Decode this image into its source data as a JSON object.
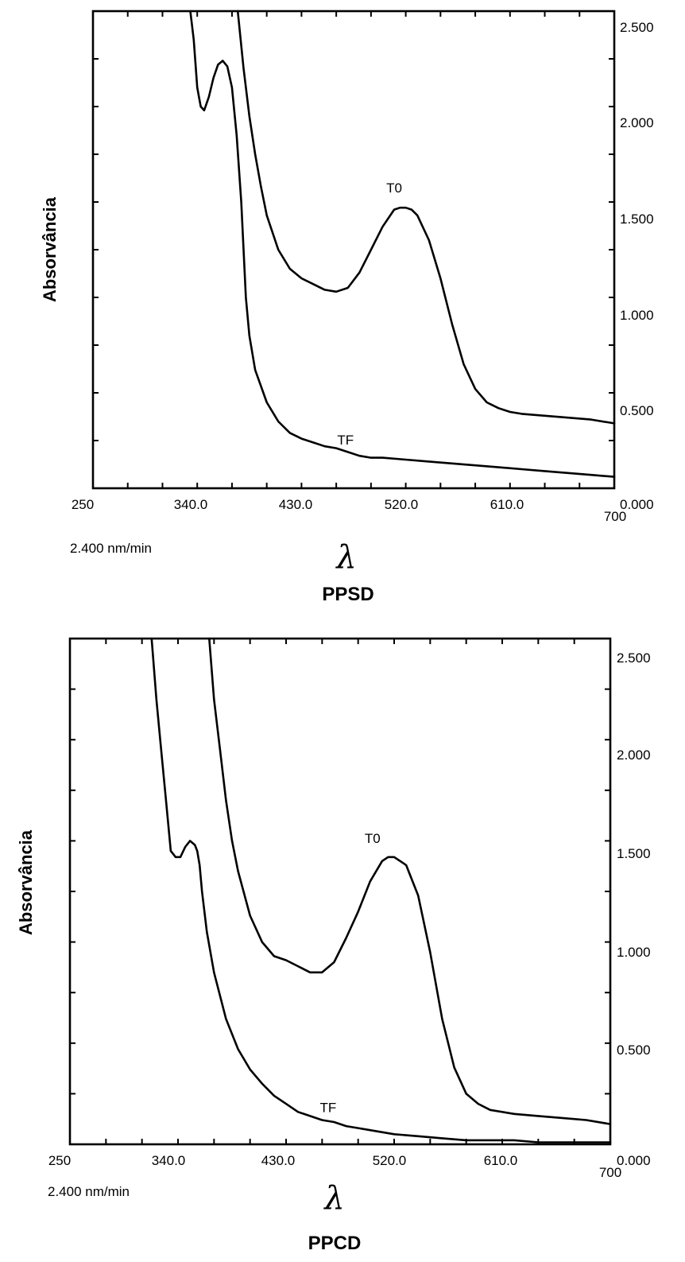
{
  "chart_data": [
    {
      "type": "line",
      "name": "PPSD",
      "xlabel": "λ",
      "ylabel": "Absorvância",
      "rate": "2.400 nm/min",
      "xlim": [
        250,
        700
      ],
      "ylim": [
        0,
        2.5
      ],
      "x_ticks": [
        "250",
        "340.0",
        "430.0",
        "520.0",
        "610.0",
        "700"
      ],
      "y_ticks": [
        "0.000",
        "0.500",
        "1.000",
        "1.500",
        "2.000",
        "2.500"
      ],
      "series": [
        {
          "name": "T0",
          "x": [
            375,
            380,
            385,
            390,
            395,
            400,
            410,
            420,
            430,
            440,
            450,
            460,
            470,
            480,
            490,
            500,
            510,
            515,
            520,
            525,
            530,
            540,
            550,
            560,
            570,
            580,
            590,
            600,
            610,
            620,
            640,
            660,
            680,
            700
          ],
          "y": [
            2.5,
            2.2,
            1.95,
            1.75,
            1.58,
            1.43,
            1.25,
            1.15,
            1.1,
            1.07,
            1.04,
            1.03,
            1.05,
            1.13,
            1.25,
            1.37,
            1.46,
            1.47,
            1.47,
            1.46,
            1.43,
            1.3,
            1.1,
            0.86,
            0.65,
            0.52,
            0.45,
            0.42,
            0.4,
            0.39,
            0.38,
            0.37,
            0.36,
            0.34
          ]
        },
        {
          "name": "TF",
          "x": [
            334,
            337,
            340,
            343,
            346,
            350,
            354,
            358,
            362,
            366,
            370,
            374,
            378,
            380,
            382,
            385,
            390,
            400,
            410,
            420,
            430,
            440,
            450,
            460,
            470,
            480,
            490,
            500,
            520,
            540,
            560,
            580,
            600,
            620,
            640,
            660,
            680,
            700
          ],
          "y": [
            2.5,
            2.35,
            2.1,
            2.0,
            1.98,
            2.05,
            2.15,
            2.22,
            2.24,
            2.21,
            2.1,
            1.85,
            1.5,
            1.25,
            1.0,
            0.8,
            0.62,
            0.45,
            0.35,
            0.29,
            0.26,
            0.24,
            0.22,
            0.21,
            0.19,
            0.17,
            0.16,
            0.16,
            0.15,
            0.14,
            0.13,
            0.12,
            0.11,
            0.1,
            0.09,
            0.08,
            0.07,
            0.06
          ]
        }
      ],
      "annotations": [
        {
          "text": "T0",
          "x": 510,
          "y": 1.55
        },
        {
          "text": "TF",
          "x": 468,
          "y": 0.23
        }
      ]
    },
    {
      "type": "line",
      "name": "PPCD",
      "xlabel": "λ",
      "ylabel": "Absorvância",
      "rate": "2.400 nm/min",
      "xlim": [
        250,
        700
      ],
      "ylim": [
        0,
        2.5
      ],
      "x_ticks": [
        "250",
        "340.0",
        "430.0",
        "520.0",
        "610.0",
        "700"
      ],
      "y_ticks": [
        "0.000",
        "0.500",
        "1.000",
        "1.500",
        "2.000",
        "2.500"
      ],
      "series": [
        {
          "name": "T0",
          "x": [
            366,
            370,
            375,
            380,
            385,
            390,
            400,
            410,
            420,
            430,
            440,
            450,
            460,
            470,
            480,
            490,
            500,
            510,
            515,
            520,
            530,
            540,
            550,
            560,
            570,
            580,
            590,
            600,
            620,
            640,
            660,
            680,
            700
          ],
          "y": [
            2.5,
            2.2,
            1.95,
            1.7,
            1.5,
            1.35,
            1.13,
            1.0,
            0.93,
            0.91,
            0.88,
            0.85,
            0.85,
            0.9,
            1.02,
            1.15,
            1.3,
            1.4,
            1.42,
            1.42,
            1.38,
            1.23,
            0.95,
            0.62,
            0.38,
            0.25,
            0.2,
            0.17,
            0.15,
            0.14,
            0.13,
            0.12,
            0.1
          ]
        },
        {
          "name": "TF",
          "x": [
            318,
            322,
            326,
            330,
            334,
            338,
            342,
            346,
            350,
            354,
            356,
            358,
            360,
            364,
            370,
            380,
            390,
            400,
            410,
            420,
            430,
            440,
            450,
            460,
            470,
            480,
            490,
            500,
            520,
            540,
            560,
            580,
            600,
            620,
            640,
            660,
            680,
            700
          ],
          "y": [
            2.5,
            2.2,
            1.95,
            1.7,
            1.45,
            1.42,
            1.42,
            1.47,
            1.5,
            1.48,
            1.45,
            1.38,
            1.25,
            1.05,
            0.85,
            0.62,
            0.47,
            0.37,
            0.3,
            0.24,
            0.2,
            0.16,
            0.14,
            0.12,
            0.11,
            0.09,
            0.08,
            0.07,
            0.05,
            0.04,
            0.03,
            0.02,
            0.02,
            0.02,
            0.01,
            0.01,
            0.01,
            0.01
          ]
        }
      ],
      "annotations": [
        {
          "text": "T0",
          "x": 502,
          "y": 1.49
        },
        {
          "text": "TF",
          "x": 465,
          "y": 0.16
        }
      ]
    }
  ]
}
